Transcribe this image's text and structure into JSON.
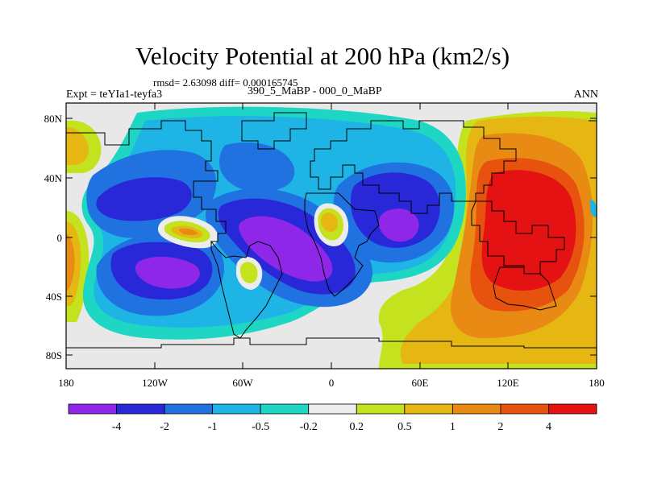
{
  "title": "Velocity Potential at 200 hPa (km2/s)",
  "stats": "rmsd= 2.63098 diff= 0.000165745",
  "subtitle_left": "Expt = teYIa1-teyfa3",
  "subtitle_center": "390_5_MaBP - 000_0_MaBP",
  "subtitle_right": "ANN",
  "lat_labels": [
    "80N",
    "40N",
    "0",
    "40S",
    "80S"
  ],
  "lon_labels": [
    "180",
    "120W",
    "60W",
    "0",
    "60E",
    "120E",
    "180"
  ],
  "colorbar": {
    "colors": [
      "#8f27e8",
      "#2828d8",
      "#1f72e0",
      "#1fb4e6",
      "#1ed6c4",
      "#ececec",
      "#c4e21d",
      "#e6b612",
      "#e88a14",
      "#e8520f",
      "#e41212"
    ],
    "labels": [
      "-4",
      "-2",
      "-1",
      "-0.5",
      "-0.2",
      "0.2",
      "0.5",
      "1",
      "2",
      "4"
    ]
  },
  "map_colors": {
    "background": "#e8e8e8",
    "coast": "#000000"
  }
}
